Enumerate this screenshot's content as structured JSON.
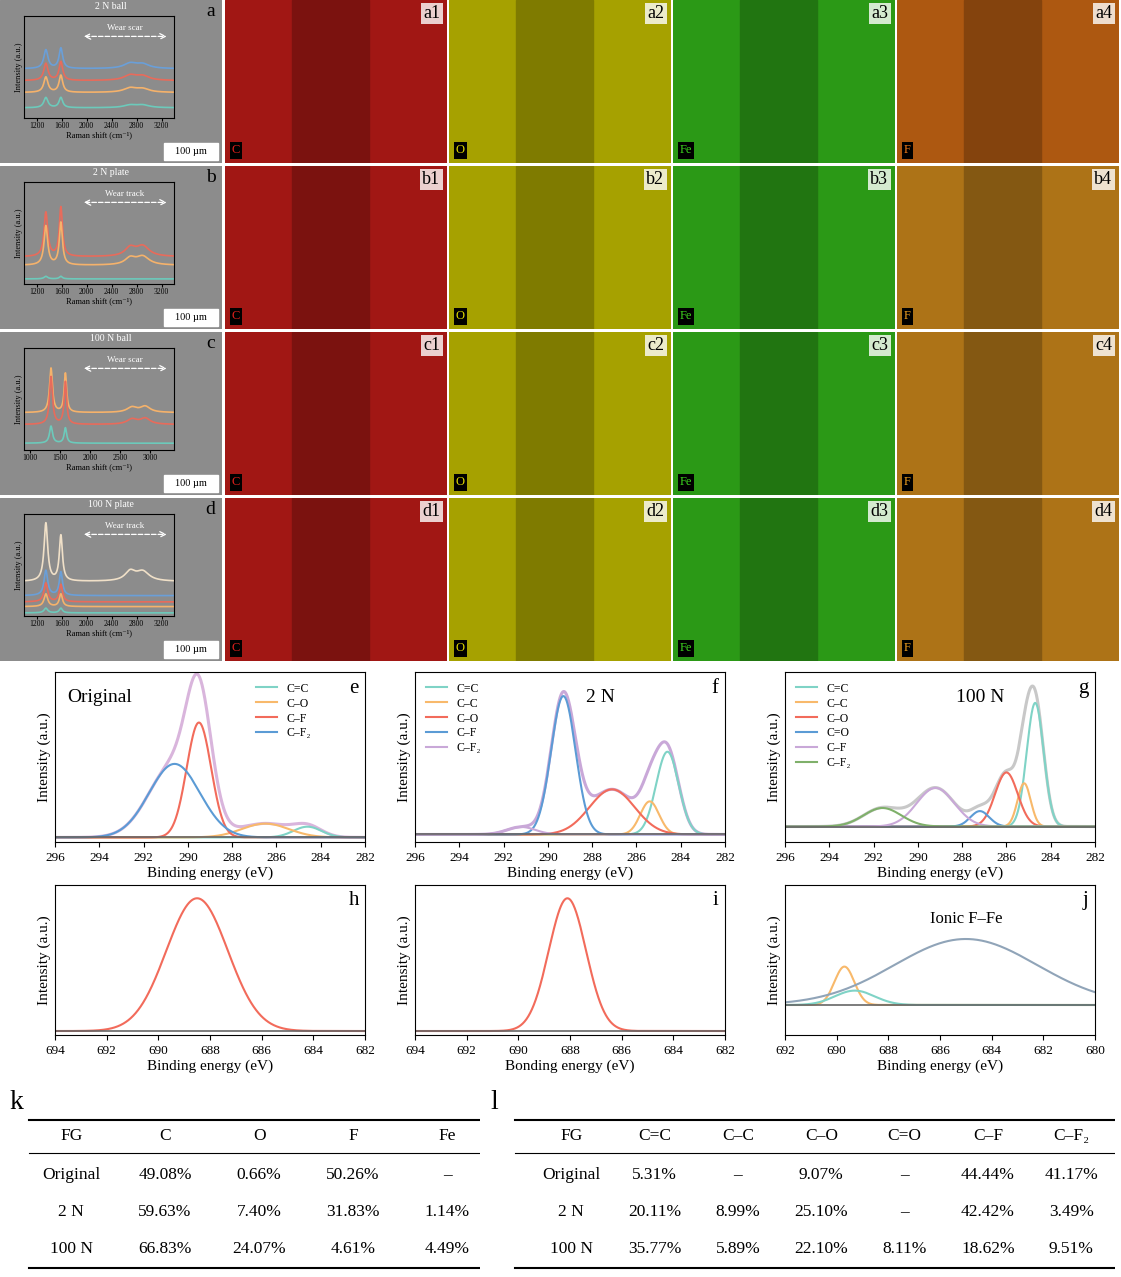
{
  "chart_data": [
    {
      "type": "raman",
      "label": "a",
      "title": "2 N ball",
      "annotation": "Wear scar",
      "x_label": "Raman shift (cm⁻¹)",
      "y_label": "Intensity (a.u.)",
      "xlim": [
        1000,
        3400
      ],
      "ylim": [
        0,
        6
      ],
      "xticks": [
        1200,
        1600,
        2000,
        2400,
        2800,
        3200
      ],
      "tick_labels": "x",
      "series": [
        {
          "color": "#6a9fd8",
          "offset": 2.9,
          "peaks": [
            {
              "center": 1350,
              "height": 1.1,
              "fwhm": 80
            },
            {
              "center": 1590,
              "height": 1.2,
              "fwhm": 70
            },
            {
              "center": 2700,
              "height": 0.3,
              "fwhm": 250
            },
            {
              "center": 2900,
              "height": 0.25,
              "fwhm": 250
            }
          ]
        },
        {
          "color": "#e86b5b",
          "offset": 2.2,
          "peaks": [
            {
              "center": 1350,
              "height": 1.0,
              "fwhm": 80
            },
            {
              "center": 1590,
              "height": 1.1,
              "fwhm": 70
            },
            {
              "center": 2700,
              "height": 0.3,
              "fwhm": 250
            },
            {
              "center": 2900,
              "height": 0.25,
              "fwhm": 250
            }
          ]
        },
        {
          "color": "#f5b26b",
          "offset": 1.5,
          "peaks": [
            {
              "center": 1350,
              "height": 0.9,
              "fwhm": 80
            },
            {
              "center": 1590,
              "height": 1.0,
              "fwhm": 70
            },
            {
              "center": 2700,
              "height": 0.25,
              "fwhm": 250
            },
            {
              "center": 2900,
              "height": 0.2,
              "fwhm": 250
            }
          ]
        },
        {
          "color": "#6ccabb",
          "offset": 0.6,
          "peaks": [
            {
              "center": 1350,
              "height": 0.6,
              "fwhm": 80
            },
            {
              "center": 1590,
              "height": 0.6,
              "fwhm": 70
            },
            {
              "center": 2700,
              "height": 0.15,
              "fwhm": 250
            },
            {
              "center": 2900,
              "height": 0.15,
              "fwhm": 250
            }
          ]
        }
      ]
    },
    {
      "type": "raman",
      "label": "b",
      "title": "2 N plate",
      "annotation": "Wear track",
      "x_label": "Raman shift (cm⁻¹)",
      "y_label": "Intensity (a.u.)",
      "xlim": [
        1000,
        3400
      ],
      "ylim": [
        0,
        6
      ],
      "xticks": [
        1200,
        1600,
        2000,
        2400,
        2800,
        3200
      ],
      "tick_labels": "x",
      "series": [
        {
          "color": "#e86b5b",
          "offset": 1.6,
          "peaks": [
            {
              "center": 1350,
              "height": 2.6,
              "fwhm": 70
            },
            {
              "center": 1590,
              "height": 2.9,
              "fwhm": 60
            },
            {
              "center": 2700,
              "height": 0.5,
              "fwhm": 200
            },
            {
              "center": 2900,
              "height": 0.6,
              "fwhm": 250
            }
          ]
        },
        {
          "color": "#f5b26b",
          "offset": 1.1,
          "peaks": [
            {
              "center": 1350,
              "height": 2.3,
              "fwhm": 70
            },
            {
              "center": 1590,
              "height": 2.5,
              "fwhm": 60
            },
            {
              "center": 2700,
              "height": 0.4,
              "fwhm": 200
            },
            {
              "center": 2900,
              "height": 0.5,
              "fwhm": 250
            }
          ]
        },
        {
          "color": "#6ccabb",
          "offset": 0.3,
          "peaks": [
            {
              "center": 1350,
              "height": 0.15,
              "fwhm": 70
            },
            {
              "center": 1590,
              "height": 0.15,
              "fwhm": 60
            }
          ]
        }
      ]
    },
    {
      "type": "raman",
      "label": "c",
      "title": "100 N ball",
      "annotation": "Wear scar",
      "x_label": "Raman shift (cm⁻¹)",
      "y_label": "Intensity (a.u.)",
      "xlim": [
        900,
        3400
      ],
      "ylim": [
        0,
        6
      ],
      "xticks": [
        1000,
        1500,
        2000,
        2500,
        3000
      ],
      "tick_labels": "x",
      "series": [
        {
          "color": "#f5b26b",
          "offset": 2.2,
          "peaks": [
            {
              "center": 1350,
              "height": 2.6,
              "fwhm": 60
            },
            {
              "center": 1590,
              "height": 2.3,
              "fwhm": 50
            },
            {
              "center": 2700,
              "height": 0.3,
              "fwhm": 200
            },
            {
              "center": 2920,
              "height": 0.35,
              "fwhm": 200
            }
          ]
        },
        {
          "color": "#e86b5b",
          "offset": 1.5,
          "peaks": [
            {
              "center": 1350,
              "height": 2.8,
              "fwhm": 60
            },
            {
              "center": 1590,
              "height": 2.5,
              "fwhm": 50
            },
            {
              "center": 2700,
              "height": 0.3,
              "fwhm": 200
            },
            {
              "center": 2920,
              "height": 0.35,
              "fwhm": 200
            }
          ]
        },
        {
          "color": "#6ccabb",
          "offset": 0.4,
          "peaks": [
            {
              "center": 1350,
              "height": 1.0,
              "fwhm": 60
            },
            {
              "center": 1590,
              "height": 0.9,
              "fwhm": 50
            }
          ]
        }
      ]
    },
    {
      "type": "raman",
      "label": "d",
      "title": "100 N plate",
      "annotation": "Wear track",
      "x_label": "Raman shift (cm⁻¹)",
      "y_label": "Intensity (a.u.)",
      "xlim": [
        1000,
        3400
      ],
      "ylim": [
        0,
        6.5
      ],
      "xticks": [
        1200,
        1600,
        2000,
        2400,
        2800,
        3200
      ],
      "tick_labels": "x",
      "series": [
        {
          "color": "#f0e0c8",
          "offset": 2.2,
          "peaks": [
            {
              "center": 1350,
              "height": 3.7,
              "fwhm": 70
            },
            {
              "center": 1590,
              "height": 2.9,
              "fwhm": 60
            },
            {
              "center": 2700,
              "height": 0.6,
              "fwhm": 200
            },
            {
              "center": 2900,
              "height": 0.6,
              "fwhm": 250
            }
          ]
        },
        {
          "color": "#6a9fd8",
          "offset": 1.3,
          "peaks": [
            {
              "center": 1350,
              "height": 1.6,
              "fwhm": 70
            },
            {
              "center": 1590,
              "height": 1.5,
              "fwhm": 60
            }
          ]
        },
        {
          "color": "#e86b5b",
          "offset": 0.9,
          "peaks": [
            {
              "center": 1350,
              "height": 1.2,
              "fwhm": 70
            },
            {
              "center": 1590,
              "height": 1.1,
              "fwhm": 60
            }
          ]
        },
        {
          "color": "#f5b26b",
          "offset": 0.6,
          "peaks": [
            {
              "center": 1350,
              "height": 0.8,
              "fwhm": 70
            },
            {
              "center": 1590,
              "height": 0.8,
              "fwhm": 60
            }
          ]
        },
        {
          "color": "#6ccabb",
          "offset": 0.2,
          "peaks": [
            {
              "center": 1350,
              "height": 0.3,
              "fwhm": 70
            },
            {
              "center": 1590,
              "height": 0.3,
              "fwhm": 60
            }
          ]
        }
      ]
    },
    {
      "type": "xps_fit",
      "label": "e",
      "title": "Original",
      "x_label": "Binding energy (eV)",
      "y_label": "Intensity (a.u.)",
      "xlim": [
        296,
        282
      ],
      "xticks": [
        296,
        294,
        292,
        290,
        288,
        286,
        284,
        282
      ],
      "ylim": [
        -0.03,
        1.08
      ],
      "tick_labels": "x",
      "legend": "upper right",
      "color": "#d9b5dc",
      "series": [
        {
          "name": "C=C",
          "color": "#7fd3c6",
          "center": 284.6,
          "height": 0.07,
          "fwhm": 1.5
        },
        {
          "name": "C–O",
          "color": "#f8b96b",
          "center": 286.5,
          "height": 0.09,
          "fwhm": 2.5
        },
        {
          "name": "C–F",
          "color": "#f26b5b",
          "center": 289.5,
          "height": 0.75,
          "fwhm": 1.3
        },
        {
          "name": "C–F₂",
          "color": "#5b9bd5",
          "center": 290.6,
          "height": 0.48,
          "fwhm": 2.7
        }
      ]
    },
    {
      "type": "xps_fit",
      "label": "f",
      "title": "2 N",
      "x_label": "Binding energy (eV)",
      "y_label": "Intensity (a.u.)",
      "xlim": [
        296,
        282
      ],
      "xticks": [
        296,
        294,
        292,
        290,
        288,
        286,
        284,
        282
      ],
      "ylim": [
        -0.05,
        1.08
      ],
      "tick_labels": "x",
      "legend": "upper left",
      "color": "#c9a8d8",
      "series": [
        {
          "name": "C=C",
          "color": "#7fd3c6",
          "center": 284.6,
          "height": 0.55,
          "fwhm": 1.2
        },
        {
          "name": "C–C",
          "color": "#f8b96b",
          "center": 285.4,
          "height": 0.22,
          "fwhm": 1.0
        },
        {
          "name": "C–O",
          "color": "#f26b5b",
          "center": 287.1,
          "height": 0.3,
          "fwhm": 2.4
        },
        {
          "name": "C–F",
          "color": "#5b9bd5",
          "center": 289.3,
          "height": 0.92,
          "fwhm": 1.3
        },
        {
          "name": "C–F₂",
          "color": "#c9a8d8",
          "center": 291.2,
          "height": 0.05,
          "fwhm": 1.5
        }
      ]
    },
    {
      "type": "xps_fit",
      "label": "g",
      "title": "100 N",
      "x_label": "Binding energy (eV)",
      "y_label": "Intensity (a.u.)",
      "xlim": [
        296,
        282
      ],
      "xticks": [
        296,
        294,
        292,
        290,
        288,
        286,
        284,
        282
      ],
      "ylim": [
        -0.1,
        1.0
      ],
      "tick_labels": "x",
      "legend": "upper left",
      "color": "#c8c8c8",
      "series": [
        {
          "name": "C=C",
          "color": "#7fd3c6",
          "center": 284.7,
          "height": 0.8,
          "fwhm": 0.9
        },
        {
          "name": "C–C",
          "color": "#f8b96b",
          "center": 285.2,
          "height": 0.28,
          "fwhm": 0.7
        },
        {
          "name": "C–O",
          "color": "#f26b5b",
          "center": 286.0,
          "height": 0.35,
          "fwhm": 1.2
        },
        {
          "name": "C=O",
          "color": "#5b9bd5",
          "center": 287.2,
          "height": 0.1,
          "fwhm": 1.0
        },
        {
          "name": "C–F",
          "color": "#c9a8d8",
          "center": 289.2,
          "height": 0.25,
          "fwhm": 2.0
        },
        {
          "name": "C–F₂",
          "color": "#7fb06a",
          "center": 291.6,
          "height": 0.12,
          "fwhm": 2.0
        }
      ]
    },
    {
      "type": "xps_fit",
      "label": "h",
      "x_label": "Binding energy (eV)",
      "y_label": "Intensity (a.u.)",
      "xlim": [
        694,
        682
      ],
      "xticks": [
        694,
        692,
        690,
        688,
        686,
        684,
        682
      ],
      "ylim": [
        -0.03,
        1.1
      ],
      "tick_labels": "x",
      "series": [
        {
          "color": "#f26b5b",
          "center": 688.5,
          "height": 1.0,
          "fwhm": 2.8
        }
      ]
    },
    {
      "type": "xps_fit",
      "label": "i",
      "x_label": "Bonding energy (eV)",
      "y_label": "Intensity (a.u.)",
      "xlim": [
        694,
        682
      ],
      "xticks": [
        694,
        692,
        690,
        688,
        686,
        684,
        682
      ],
      "ylim": [
        -0.03,
        1.1
      ],
      "tick_labels": "x",
      "series": [
        {
          "color": "#f26b5b",
          "center": 688.1,
          "height": 1.0,
          "fwhm": 1.7
        }
      ]
    },
    {
      "type": "xps_fit",
      "label": "j",
      "x_label": "Binding energy (eV)",
      "y_label": "Intensity (a.u.)",
      "xlim": [
        692,
        680
      ],
      "xticks": [
        692,
        690,
        688,
        686,
        684,
        682,
        680
      ],
      "ylim": [
        -0.25,
        1.0
      ],
      "tick_labels": "x",
      "annotations": [
        "Ionic F–Fe"
      ],
      "series": [
        {
          "color": "#f8b96b",
          "center": 689.7,
          "height": 0.32,
          "fwhm": 0.9
        },
        {
          "color": "#7fd3c6",
          "center": 689.3,
          "height": 0.12,
          "fwhm": 1.8
        },
        {
          "color": "#90a4b8",
          "center": 685.0,
          "height": 0.55,
          "fwhm": 6.5
        }
      ]
    }
  ],
  "images": [
    {
      "label": "a",
      "scale_bar": "100 µm",
      "maps": [
        {
          "label": "a1",
          "element": "C",
          "color": "#e0201c"
        },
        {
          "label": "a2",
          "element": "O",
          "color": "#e6e000"
        },
        {
          "label": "a3",
          "element": "Fe",
          "color": "#3cd41e"
        },
        {
          "label": "a4",
          "element": "F",
          "color": "#f07a18"
        }
      ]
    },
    {
      "label": "b",
      "scale_bar": "100 µm",
      "maps": [
        {
          "label": "b1",
          "element": "C",
          "color": "#e0201c"
        },
        {
          "label": "b2",
          "element": "O",
          "color": "#e6e000"
        },
        {
          "label": "b3",
          "element": "Fe",
          "color": "#3cd41e"
        },
        {
          "label": "b4",
          "element": "F",
          "color": "#f0a020"
        }
      ]
    },
    {
      "label": "c",
      "scale_bar": "100 µm",
      "maps": [
        {
          "label": "c1",
          "element": "C",
          "color": "#e0201c"
        },
        {
          "label": "c2",
          "element": "O",
          "color": "#e6e000"
        },
        {
          "label": "c3",
          "element": "Fe",
          "color": "#3cd41e"
        },
        {
          "label": "c4",
          "element": "F",
          "color": "#f0a020"
        }
      ]
    },
    {
      "label": "d",
      "scale_bar": "100 µm",
      "maps": [
        {
          "label": "d1",
          "element": "C",
          "color": "#e0201c"
        },
        {
          "label": "d2",
          "element": "O",
          "color": "#e6e000"
        },
        {
          "label": "d3",
          "element": "Fe",
          "color": "#3cd41e"
        },
        {
          "label": "d4",
          "element": "F",
          "color": "#f0a020"
        }
      ]
    }
  ],
  "tables": [
    {
      "label": "k",
      "columns": [
        "FG",
        "C",
        "O",
        "F",
        "Fe"
      ],
      "rows": [
        [
          "Original",
          "49.08%",
          "0.66%",
          "50.26%",
          "–"
        ],
        [
          "2 N",
          "59.63%",
          "7.40%",
          "31.83%",
          "1.14%"
        ],
        [
          "100 N",
          "66.83%",
          "24.07%",
          "4.61%",
          "4.49%"
        ]
      ]
    },
    {
      "label": "l",
      "columns": [
        "FG",
        "C=C",
        "C–C",
        "C–O",
        "C=O",
        "C–F",
        "C–F₂"
      ],
      "rows": [
        [
          "Original",
          "5.31%",
          "–",
          "9.07%",
          "–",
          "44.44%",
          "41.17%"
        ],
        [
          "2 N",
          "20.11%",
          "8.99%",
          "25.10%",
          "–",
          "42.42%",
          "3.49%"
        ],
        [
          "100 N",
          "35.77%",
          "5.89%",
          "22.10%",
          "8.11%",
          "18.62%",
          "9.51%"
        ]
      ]
    }
  ]
}
